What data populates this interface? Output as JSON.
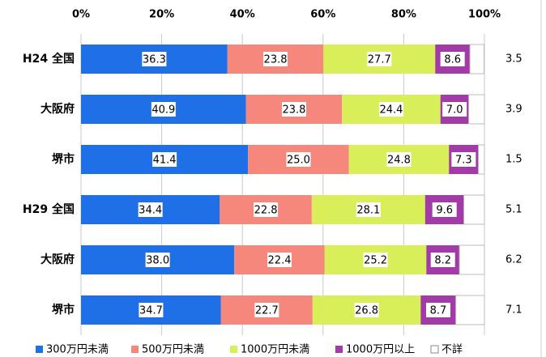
{
  "chart_data": {
    "type": "stacked-barh",
    "categories": [
      "H24 全国",
      "大阪府",
      "堺市",
      "H29 全国",
      "大阪府",
      "堺市"
    ],
    "series": [
      {
        "name": "300万円未満",
        "color": "#1f6fe6",
        "values": [
          36.3,
          40.9,
          41.4,
          34.4,
          38.0,
          34.7
        ],
        "value_labels": [
          "36.3",
          "40.9",
          "41.4",
          "34.4",
          "38.0",
          "34.7"
        ]
      },
      {
        "name": "500万円未満",
        "color": "#f6877c",
        "values": [
          23.8,
          23.8,
          25.0,
          22.8,
          22.4,
          22.7
        ],
        "value_labels": [
          "23.8",
          "23.8",
          "25.0",
          "22.8",
          "22.4",
          "22.7"
        ]
      },
      {
        "name": "1000万円未満",
        "color": "#d8ef5a",
        "values": [
          27.7,
          24.4,
          24.8,
          28.1,
          25.2,
          26.8
        ],
        "value_labels": [
          "27.7",
          "24.4",
          "24.8",
          "28.1",
          "25.2",
          "26.8"
        ]
      },
      {
        "name": "1000万円以上",
        "color": "#a23aa8",
        "values": [
          8.6,
          7.0,
          7.3,
          9.6,
          8.2,
          8.7
        ],
        "value_labels": [
          "8.6",
          "7.0",
          "7.3",
          "9.6",
          "8.2",
          "8.7"
        ]
      },
      {
        "name": "不詳",
        "color": "#ffffff",
        "values": [
          3.5,
          3.9,
          1.5,
          5.1,
          6.2,
          7.1
        ],
        "value_labels": [
          "3.5",
          "3.9",
          "1.5",
          "5.1",
          "6.2",
          "7.1"
        ]
      }
    ],
    "xlim": [
      0,
      100
    ],
    "xticks": [
      {
        "value": 0,
        "label": "0%"
      },
      {
        "value": 20,
        "label": "20%"
      },
      {
        "value": 40,
        "label": "40%"
      },
      {
        "value": 60,
        "label": "60%"
      },
      {
        "value": 80,
        "label": "80%"
      },
      {
        "value": 100,
        "label": "100%"
      }
    ],
    "grid": true,
    "legend": "bottom"
  }
}
